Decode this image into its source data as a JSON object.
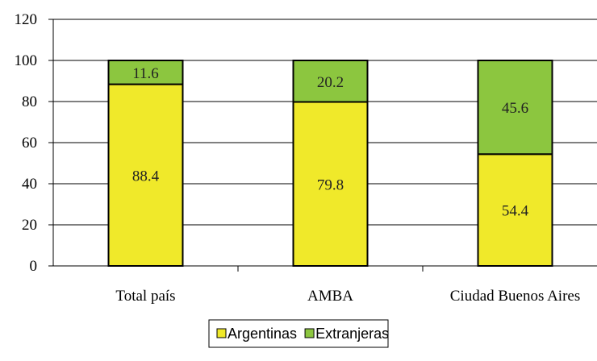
{
  "chart_data": {
    "type": "bar",
    "stacked": true,
    "categories": [
      "Total país",
      "AMBA",
      "Ciudad Buenos Aires"
    ],
    "series": [
      {
        "name": "Argentinas",
        "values": [
          88.4,
          79.8,
          54.4
        ],
        "color": "#f0e92a"
      },
      {
        "name": "Extranjeras",
        "values": [
          11.6,
          20.2,
          45.6
        ],
        "color": "#8cc63f"
      }
    ],
    "ylim": [
      0,
      120
    ],
    "yticks": [
      0,
      20,
      40,
      60,
      80,
      100,
      120
    ],
    "data_labels": true,
    "grid": true,
    "legend_position": "bottom"
  }
}
